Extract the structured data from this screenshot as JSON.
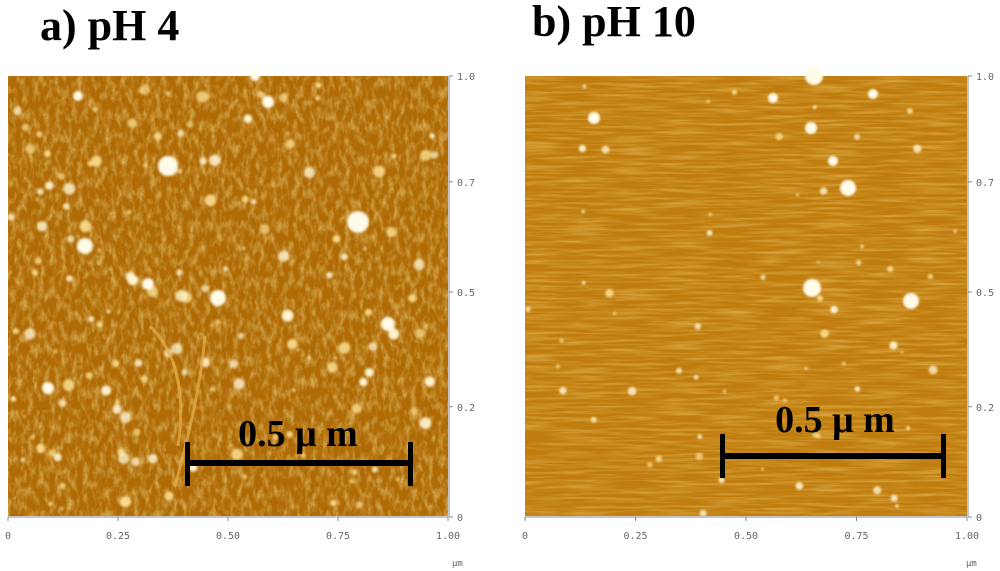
{
  "panels": [
    {
      "title": "a) pH 4",
      "scale_bar_label": "0.5 μ m",
      "x_ticks": [
        "0",
        "0.25",
        "0.50",
        "0.75",
        "1.00"
      ],
      "y_ticks": [
        "1.0",
        "0.7",
        "0.5",
        "0.2",
        "0"
      ],
      "unit": "µm"
    },
    {
      "title": "b) pH 10",
      "scale_bar_label": "0.5 μ m",
      "x_ticks": [
        "0",
        "0.25",
        "0.50",
        "0.75",
        "1.00"
      ],
      "y_ticks": [
        "1.0",
        "0.7",
        "0.5",
        "0.2",
        "0"
      ],
      "unit": "µm"
    }
  ],
  "colors": {
    "surface_a": "#b86f08",
    "surface_b": "#c27d10",
    "particle": "#fff2c8",
    "scale_bar": "#000000",
    "axis": "#666666"
  }
}
